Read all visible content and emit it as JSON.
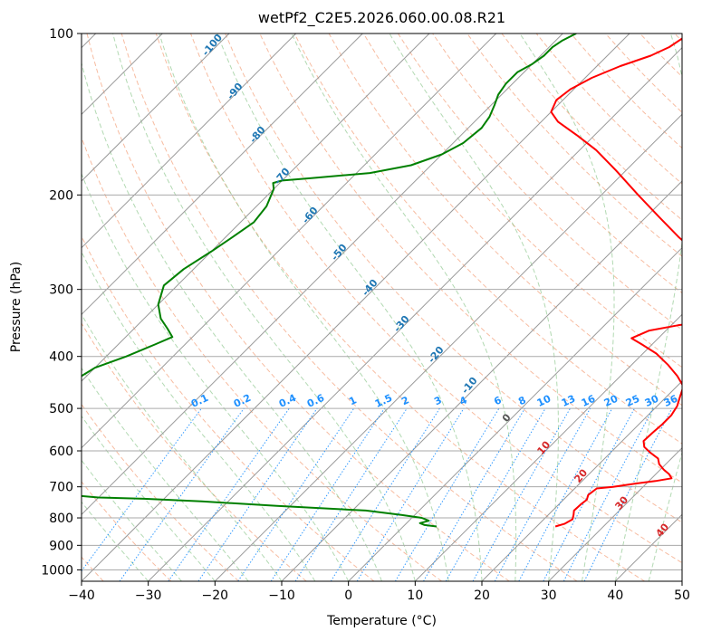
{
  "chart_data": {
    "type": "line",
    "title": "wetPf2_C2E5.2026.060.00.08.R21",
    "xlabel": "Temperature (°C)",
    "ylabel": "Pressure (hPa)",
    "xlim": [
      -40,
      50
    ],
    "ylim": [
      1050,
      100
    ],
    "yscale": "log",
    "skew": true,
    "grid": true,
    "x_ticks": [
      -40,
      -30,
      -20,
      -10,
      0,
      10,
      20,
      30,
      40,
      50
    ],
    "y_ticks": [
      1000,
      900,
      800,
      700,
      600,
      500,
      400,
      300,
      200,
      100
    ],
    "series": [
      {
        "color": "#ff0000",
        "points": [
          [
            830,
            22.8
          ],
          [
            820,
            23.8
          ],
          [
            805,
            24.3
          ],
          [
            790,
            23.8
          ],
          [
            775,
            23.2
          ],
          [
            755,
            23.3
          ],
          [
            740,
            23.5
          ],
          [
            725,
            23.0
          ],
          [
            705,
            23.3
          ],
          [
            700,
            25.5
          ],
          [
            690,
            28.5
          ],
          [
            683,
            31.0
          ],
          [
            675,
            33.0
          ],
          [
            663,
            32.0
          ],
          [
            650,
            30.5
          ],
          [
            635,
            29.0
          ],
          [
            620,
            28.0
          ],
          [
            605,
            26.0
          ],
          [
            590,
            24.2
          ],
          [
            575,
            23.2
          ],
          [
            555,
            23.3
          ],
          [
            535,
            23.5
          ],
          [
            515,
            23.5
          ],
          [
            495,
            23.0
          ],
          [
            475,
            22.0
          ],
          [
            455,
            21.0
          ],
          [
            435,
            18.5
          ],
          [
            415,
            15.5
          ],
          [
            395,
            12.0
          ],
          [
            380,
            8.5
          ],
          [
            370,
            6.0
          ],
          [
            358,
            7.5
          ],
          [
            350,
            11.0
          ],
          [
            342,
            16.0
          ],
          [
            335,
            20.0
          ],
          [
            325,
            21.5
          ],
          [
            315,
            20.0
          ],
          [
            300,
            16.0
          ],
          [
            280,
            10.0
          ],
          [
            260,
            4.0
          ],
          [
            240,
            -2.0
          ],
          [
            220,
            -8.0
          ],
          [
            200,
            -14.5
          ],
          [
            180,
            -21.5
          ],
          [
            165,
            -27.5
          ],
          [
            155,
            -32.5
          ],
          [
            146,
            -37.5
          ],
          [
            140,
            -40.0
          ],
          [
            133,
            -41.0
          ],
          [
            127,
            -40.5
          ],
          [
            121,
            -39.0
          ],
          [
            115,
            -36.5
          ],
          [
            110,
            -33.5
          ],
          [
            106,
            -32.0
          ],
          [
            100,
            -31.0
          ]
        ]
      },
      {
        "color": "#008000",
        "points": [
          [
            830,
            5.0
          ],
          [
            825,
            3.0
          ],
          [
            818,
            2.0
          ],
          [
            810,
            3.0
          ],
          [
            800,
            1.5
          ],
          [
            790,
            -2.0
          ],
          [
            775,
            -8.0
          ],
          [
            760,
            -22.0
          ],
          [
            745,
            -34.0
          ],
          [
            737,
            -43.0
          ],
          [
            733,
            -50.0
          ],
          [
            728,
            -53.0
          ],
          [
            718,
            -56.0
          ],
          [
            700,
            -61.0
          ],
          [
            688,
            -68.0
          ],
          [
            675,
            -74.0
          ],
          [
            665,
            -78.0
          ],
          [
            640,
            -79.0
          ],
          [
            600,
            -79.0
          ],
          [
            550,
            -78.0
          ],
          [
            500,
            -74.0
          ],
          [
            470,
            -72.0
          ],
          [
            440,
            -71.0
          ],
          [
            420,
            -70.0
          ],
          [
            400,
            -67.0
          ],
          [
            380,
            -64.5
          ],
          [
            368,
            -63.0
          ],
          [
            355,
            -65.0
          ],
          [
            340,
            -67.5
          ],
          [
            320,
            -70.0
          ],
          [
            295,
            -72.0
          ],
          [
            275,
            -71.5
          ],
          [
            255,
            -70.0
          ],
          [
            240,
            -69.0
          ],
          [
            225,
            -68.0
          ],
          [
            210,
            -68.5
          ],
          [
            195,
            -70.0
          ],
          [
            190,
            -71.0
          ],
          [
            188,
            -70.0
          ],
          [
            186,
            -66.0
          ],
          [
            182,
            -58.0
          ],
          [
            176,
            -53.0
          ],
          [
            168,
            -50.0
          ],
          [
            160,
            -48.5
          ],
          [
            150,
            -48.0
          ],
          [
            143,
            -48.5
          ],
          [
            136,
            -49.5
          ],
          [
            130,
            -50.5
          ],
          [
            124,
            -51.0
          ],
          [
            118,
            -51.0
          ],
          [
            114,
            -50.0
          ],
          [
            110,
            -49.5
          ],
          [
            106,
            -49.5
          ],
          [
            103,
            -49.0
          ],
          [
            100,
            -48.0
          ]
        ]
      }
    ],
    "dry_adiabat_labels": [
      "-100",
      "-90",
      "-80",
      "-70",
      "-60",
      "-50",
      "-40",
      "-30",
      "-20",
      "-10",
      "0",
      "10",
      "20",
      "30",
      "40"
    ],
    "mixing_ratio_labels": [
      "0.1",
      "0.2",
      "0.4",
      "0.6",
      "1",
      "1.5",
      "2",
      "3",
      "4",
      "6",
      "8",
      "10",
      "13",
      "16",
      "20",
      "25",
      "30",
      "36"
    ],
    "dry_adiabat_color_cold": "#1f77b4",
    "dry_adiabat_color_warm": "#d62728",
    "mixing_ratio_color": "#1e90ff"
  }
}
